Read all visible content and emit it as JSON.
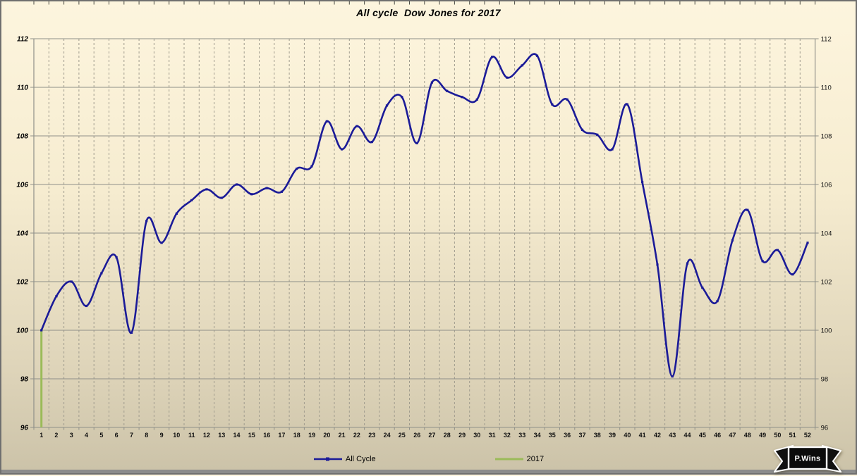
{
  "title": "All cycle  Dow Jones for 2017",
  "legend": {
    "items": [
      {
        "label": "All Cycle",
        "color": "#1b1b98",
        "marker": true
      },
      {
        "label": "2017",
        "color": "#9bbb59",
        "marker": false
      }
    ]
  },
  "badge": {
    "text": "P.Wins"
  },
  "colors": {
    "background_top": "#fdf5de",
    "background_bottom": "#cbc2a8",
    "line_blue": "#1b1b98",
    "line_green": "#9bbb59",
    "grid_solid": "#8f9089",
    "grid_dashed": "#a09c8e",
    "axis_text": "#000000",
    "bottom_bar": "#8b8b8b"
  },
  "chart_data": {
    "type": "line",
    "title": "All cycle  Dow Jones for 2017",
    "xlabel": "",
    "ylabel": "",
    "ylim": [
      96,
      112
    ],
    "y_ticks": [
      96,
      98,
      100,
      102,
      104,
      106,
      108,
      110,
      112
    ],
    "y_axis_sides": "both",
    "grid": {
      "horizontal": "solid",
      "vertical": "dashed-per-week"
    },
    "legend_position": "bottom",
    "x": [
      1,
      2,
      3,
      4,
      5,
      6,
      7,
      8,
      9,
      10,
      11,
      12,
      13,
      14,
      15,
      16,
      17,
      18,
      19,
      20,
      21,
      22,
      23,
      24,
      25,
      26,
      27,
      28,
      29,
      30,
      31,
      32,
      33,
      34,
      35,
      36,
      37,
      38,
      39,
      40,
      41,
      42,
      43,
      44,
      45,
      46,
      47,
      48,
      49,
      50,
      51,
      52
    ],
    "series": [
      {
        "name": "All Cycle",
        "style": "smooth-line-with-markers",
        "color": "#1b1b98",
        "values": [
          100.0,
          101.4,
          102.0,
          101.0,
          102.35,
          103.0,
          99.9,
          104.5,
          103.6,
          104.8,
          105.35,
          105.8,
          105.45,
          106.0,
          105.6,
          105.85,
          105.7,
          106.65,
          106.75,
          108.6,
          107.45,
          108.4,
          107.75,
          109.25,
          109.6,
          107.7,
          110.2,
          109.85,
          109.6,
          109.5,
          111.25,
          110.4,
          110.9,
          111.3,
          109.3,
          109.5,
          108.25,
          108.05,
          107.45,
          109.3,
          106.1,
          102.7,
          98.1,
          102.75,
          101.75,
          101.2,
          103.7,
          104.95,
          102.85,
          103.3,
          102.3,
          103.6
        ]
      },
      {
        "name": "2017",
        "style": "vertical-bar-from-baseline",
        "color": "#9bbb59",
        "baseline": 96,
        "points": [
          {
            "week": 1,
            "value": 100
          }
        ]
      }
    ]
  }
}
